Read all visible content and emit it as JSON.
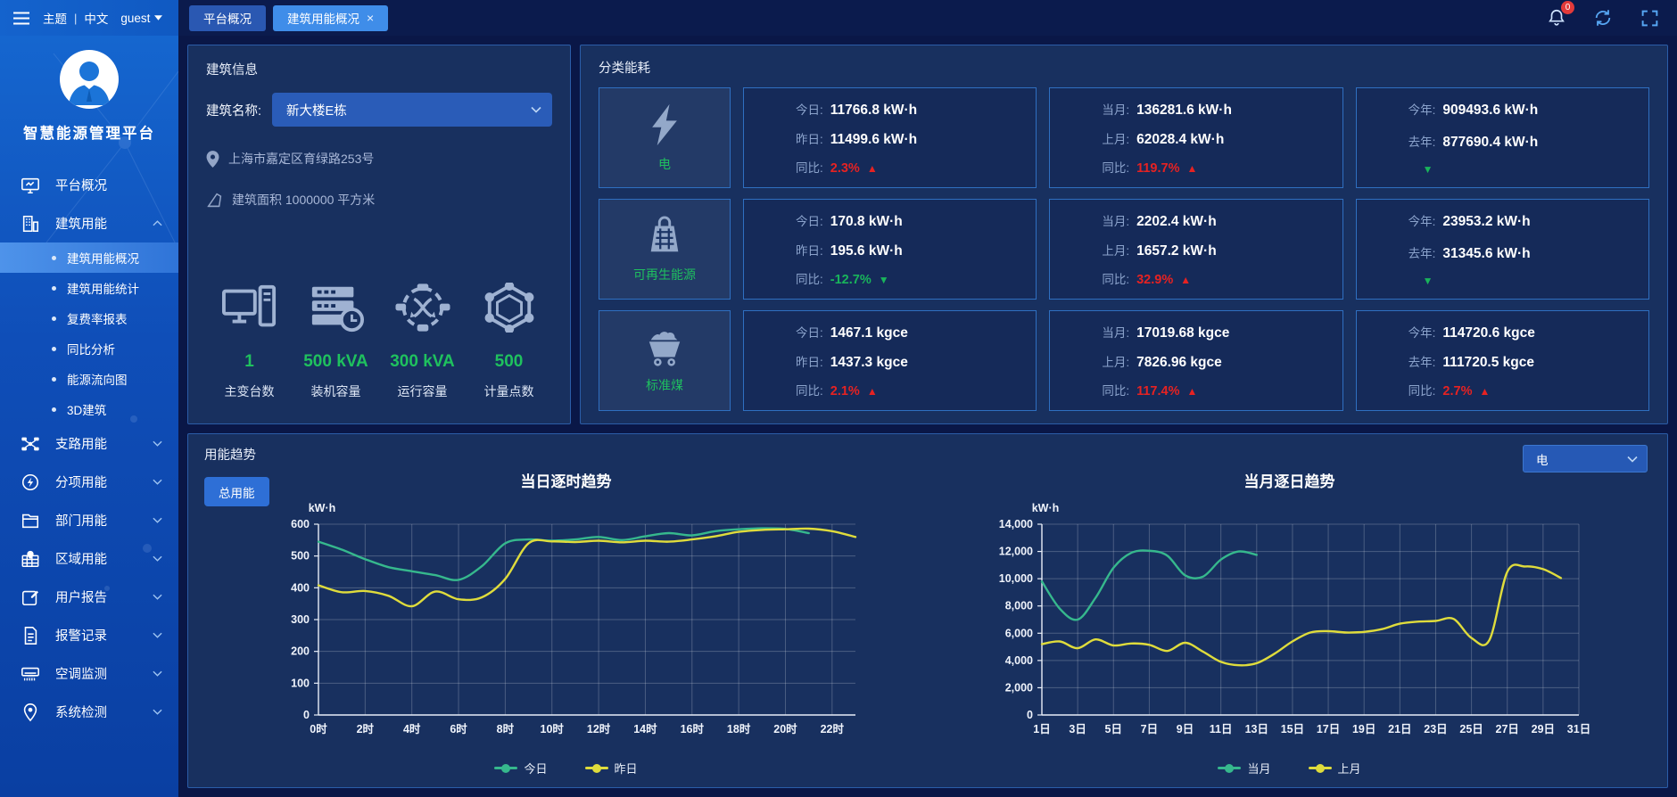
{
  "topbar": {
    "theme_label": "主题",
    "divider": "|",
    "lang_label": "中文",
    "user_name": "guest",
    "tabs": [
      {
        "label": "平台概况"
      },
      {
        "label": "建筑用能概况",
        "close_glyph": "×"
      }
    ],
    "notification_count": "0"
  },
  "sidebar": {
    "platform_title": "智慧能源管理平台",
    "items": [
      {
        "label": "平台概况"
      },
      {
        "label": "建筑用能",
        "expanded": true,
        "children": [
          {
            "label": "建筑用能概况",
            "active": true
          },
          {
            "label": "建筑用能统计"
          },
          {
            "label": "复费率报表"
          },
          {
            "label": "同比分析"
          },
          {
            "label": "能源流向图"
          },
          {
            "label": "3D建筑"
          }
        ]
      },
      {
        "label": "支路用能"
      },
      {
        "label": "分项用能"
      },
      {
        "label": "部门用能"
      },
      {
        "label": "区域用能"
      },
      {
        "label": "用户报告"
      },
      {
        "label": "报警记录"
      },
      {
        "label": "空调监测"
      },
      {
        "label": "系统检测"
      }
    ]
  },
  "building_info": {
    "title": "建筑信息",
    "name_label": "建筑名称:",
    "name_value": "新大楼E栋",
    "address": "上海市嘉定区育绿路253号",
    "area_text": "建筑面积 1000000 平方米",
    "stats": [
      {
        "value": "1",
        "label": "主变台数",
        "icon": "transformer-icon"
      },
      {
        "value": "500 kVA",
        "label": "装机容量",
        "icon": "installed-capacity-icon"
      },
      {
        "value": "300 kVA",
        "label": "运行容量",
        "icon": "running-capacity-icon"
      },
      {
        "value": "500",
        "label": "计量点数",
        "icon": "metering-points-icon"
      }
    ]
  },
  "category_energy": {
    "title": "分类能耗",
    "rows": [
      {
        "name": "电",
        "icon": "electric-icon",
        "cards": [
          {
            "rows": [
              {
                "label": "今日:",
                "value": "11766.8 kW·h"
              },
              {
                "label": "昨日:",
                "value": "11499.6 kW·h"
              }
            ],
            "yoy": {
              "label": "同比:",
              "value": "2.3%",
              "arrow": "▲",
              "dir": "up"
            }
          },
          {
            "rows": [
              {
                "label": "当月:",
                "value": "136281.6 kW·h"
              },
              {
                "label": "上月:",
                "value": "62028.4 kW·h"
              }
            ],
            "yoy": {
              "label": "同比:",
              "value": "119.7%",
              "arrow": "▲",
              "dir": "up"
            }
          },
          {
            "rows": [
              {
                "label": "今年:",
                "value": "909493.6 kW·h"
              },
              {
                "label": "去年:",
                "value": "877690.4 kW·h"
              }
            ],
            "yoy": {
              "label": "",
              "value": "",
              "arrow": "▼",
              "dir": "down"
            }
          }
        ]
      },
      {
        "name": "可再生能源",
        "icon": "renewable-icon",
        "cards": [
          {
            "rows": [
              {
                "label": "今日:",
                "value": "170.8 kW·h"
              },
              {
                "label": "昨日:",
                "value": "195.6 kW·h"
              }
            ],
            "yoy": {
              "label": "同比:",
              "value": "-12.7%",
              "arrow": "▼",
              "dir": "down"
            }
          },
          {
            "rows": [
              {
                "label": "当月:",
                "value": "2202.4 kW·h"
              },
              {
                "label": "上月:",
                "value": "1657.2 kW·h"
              }
            ],
            "yoy": {
              "label": "同比:",
              "value": "32.9%",
              "arrow": "▲",
              "dir": "up"
            }
          },
          {
            "rows": [
              {
                "label": "今年:",
                "value": "23953.2 kW·h"
              },
              {
                "label": "去年:",
                "value": "31345.6 kW·h"
              }
            ],
            "yoy": {
              "label": "",
              "value": "",
              "arrow": "▼",
              "dir": "down"
            }
          }
        ]
      },
      {
        "name": "标准煤",
        "icon": "coal-icon",
        "cards": [
          {
            "rows": [
              {
                "label": "今日:",
                "value": "1467.1 kgce"
              },
              {
                "label": "昨日:",
                "value": "1437.3 kgce"
              }
            ],
            "yoy": {
              "label": "同比:",
              "value": "2.1%",
              "arrow": "▲",
              "dir": "up"
            }
          },
          {
            "rows": [
              {
                "label": "当月:",
                "value": "17019.68 kgce"
              },
              {
                "label": "上月:",
                "value": "7826.96 kgce"
              }
            ],
            "yoy": {
              "label": "同比:",
              "value": "117.4%",
              "arrow": "▲",
              "dir": "up"
            }
          },
          {
            "rows": [
              {
                "label": "今年:",
                "value": "114720.6 kgce"
              },
              {
                "label": "去年:",
                "value": "111720.5 kgce"
              }
            ],
            "yoy": {
              "label": "同比:",
              "value": "2.7%",
              "arrow": "▲",
              "dir": "up"
            }
          }
        ]
      }
    ]
  },
  "trend": {
    "title": "用能趋势",
    "total_button": "总用能",
    "type_select": "电"
  },
  "colors": {
    "accent_green": "#1fc15e",
    "alert_red": "#e62222",
    "series_teal": "#36b88d",
    "series_yellow": "#dfdc3c",
    "sidebar_blue": "#1566cf",
    "tab_active": "#3f8de9"
  },
  "chart_data": [
    {
      "type": "line",
      "title": "当日逐时趋势",
      "ylabel": "kW·h",
      "ylim": [
        0,
        600
      ],
      "ytick_step": 100,
      "xlim": [
        0,
        23
      ],
      "x_tick_positions": [
        0,
        2,
        4,
        6,
        8,
        10,
        12,
        14,
        16,
        18,
        20,
        22
      ],
      "x_tick_labels": [
        "0时",
        "2时",
        "4时",
        "6时",
        "8时",
        "10时",
        "12时",
        "14时",
        "16时",
        "18时",
        "20时",
        "22时"
      ],
      "grid": true,
      "legend_position": "bottom",
      "series": [
        {
          "name": "今日",
          "color": "#36b88d",
          "x_start": 0,
          "values": [
            545,
            520,
            490,
            465,
            452,
            440,
            425,
            468,
            540,
            552,
            548,
            552,
            560,
            550,
            562,
            572,
            565,
            578,
            584,
            587,
            585,
            572
          ]
        },
        {
          "name": "昨日",
          "color": "#dfdc3c",
          "x_start": 0,
          "values": [
            408,
            386,
            390,
            375,
            342,
            388,
            364,
            370,
            428,
            540,
            546,
            544,
            548,
            543,
            548,
            545,
            552,
            562,
            576,
            582,
            584,
            586,
            578,
            560
          ]
        }
      ]
    },
    {
      "type": "line",
      "title": "当月逐日趋势",
      "ylabel": "kW·h",
      "ylim": [
        0,
        14000
      ],
      "ytick_step": 2000,
      "xlim": [
        1,
        31
      ],
      "x_tick_positions": [
        1,
        3,
        5,
        7,
        9,
        11,
        13,
        15,
        17,
        19,
        21,
        23,
        25,
        27,
        29,
        31
      ],
      "x_tick_labels": [
        "1日",
        "3日",
        "5日",
        "7日",
        "9日",
        "11日",
        "13日",
        "15日",
        "17日",
        "19日",
        "21日",
        "23日",
        "25日",
        "27日",
        "29日",
        "31日"
      ],
      "grid": true,
      "legend_position": "bottom",
      "series": [
        {
          "name": "当月",
          "color": "#36b88d",
          "x_start": 1,
          "values": [
            9800,
            7800,
            7000,
            8600,
            10800,
            11900,
            12050,
            11700,
            10250,
            10150,
            11400,
            12000,
            11750
          ]
        },
        {
          "name": "上月",
          "color": "#dfdc3c",
          "x_start": 1,
          "values": [
            5200,
            5400,
            4900,
            5550,
            5100,
            5250,
            5150,
            4700,
            5300,
            4650,
            3900,
            3650,
            3800,
            4500,
            5400,
            6050,
            6150,
            6050,
            6100,
            6300,
            6700,
            6850,
            6900,
            7050,
            5650,
            5500,
            10500,
            10900,
            10700,
            10050
          ]
        }
      ]
    }
  ]
}
